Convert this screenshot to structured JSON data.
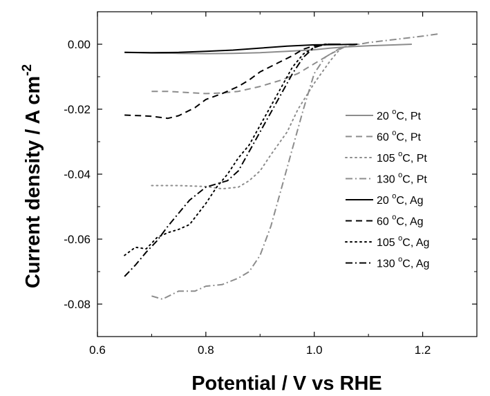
{
  "chart_data": {
    "type": "line",
    "xlabel": "Potential / V vs RHE",
    "ylabel_main": "Current density / A cm",
    "ylabel_superscript": "-2",
    "xlim": [
      0.6,
      1.3
    ],
    "ylim": [
      -0.09,
      0.01
    ],
    "x_ticks": [
      "0.6",
      "0.8",
      "1.0",
      "1.2"
    ],
    "y_ticks": [
      "0.00",
      "-0.02",
      "-0.04",
      "-0.06",
      "-0.08"
    ],
    "legend_position": "right",
    "series": [
      {
        "name": "20 °C, Pt",
        "name_value": "20",
        "name_unit": "o",
        "name_rest": "C, Pt",
        "color": "#8c8c8c",
        "dash": "solid",
        "x": [
          0.65,
          0.7,
          0.75,
          0.8,
          0.85,
          0.9,
          0.95,
          1.0,
          1.03,
          1.06,
          1.1,
          1.15,
          1.18
        ],
        "y": [
          -0.0025,
          -0.0027,
          -0.0028,
          -0.0029,
          -0.0028,
          -0.0026,
          -0.0022,
          -0.0017,
          -0.0012,
          -0.0008,
          -0.0005,
          -0.0002,
          0.0
        ]
      },
      {
        "name": "60 °C, Pt",
        "name_value": "60",
        "name_unit": "o",
        "name_rest": "C, Pt",
        "color": "#8c8c8c",
        "dash": "dash",
        "x": [
          0.7,
          0.73,
          0.76,
          0.8,
          0.83,
          0.86,
          0.9,
          0.94,
          0.97,
          1.0,
          1.03,
          1.06
        ],
        "y": [
          -0.0145,
          -0.0145,
          -0.0148,
          -0.0152,
          -0.015,
          -0.0145,
          -0.013,
          -0.011,
          -0.009,
          -0.006,
          -0.003,
          -0.0005
        ]
      },
      {
        "name": "105 °C, Pt",
        "name_value": "105",
        "name_unit": "o",
        "name_rest": "C, Pt",
        "color": "#8c8c8c",
        "dash": "dot",
        "x": [
          0.7,
          0.75,
          0.8,
          0.83,
          0.86,
          0.88,
          0.9,
          0.92,
          0.95,
          0.97,
          1.0,
          1.03,
          1.05,
          1.08
        ],
        "y": [
          -0.0435,
          -0.0435,
          -0.0438,
          -0.0445,
          -0.044,
          -0.042,
          -0.039,
          -0.034,
          -0.027,
          -0.02,
          -0.012,
          -0.005,
          -0.001,
          0.0
        ]
      },
      {
        "name": "130 °C, Pt",
        "name_value": "130",
        "name_unit": "o",
        "name_rest": "C, Pt",
        "color": "#8c8c8c",
        "dash": "dashdot",
        "x": [
          0.7,
          0.72,
          0.75,
          0.78,
          0.8,
          0.83,
          0.86,
          0.88,
          0.9,
          0.92,
          0.94,
          0.96,
          0.98,
          1.0,
          1.02,
          1.05,
          1.1,
          1.15,
          1.2,
          1.23
        ],
        "y": [
          -0.0775,
          -0.0785,
          -0.076,
          -0.076,
          -0.0745,
          -0.074,
          -0.072,
          -0.07,
          -0.065,
          -0.056,
          -0.044,
          -0.032,
          -0.02,
          -0.009,
          -0.004,
          -0.001,
          0.0005,
          0.0015,
          0.0025,
          0.0032
        ]
      },
      {
        "name": "20 °C, Ag",
        "name_value": "20",
        "name_unit": "o",
        "name_rest": "C, Ag",
        "color": "#000000",
        "dash": "solid",
        "x": [
          0.65,
          0.7,
          0.75,
          0.8,
          0.85,
          0.9,
          0.95,
          1.0,
          1.05,
          1.08
        ],
        "y": [
          -0.0025,
          -0.0026,
          -0.0025,
          -0.0022,
          -0.0018,
          -0.0012,
          -0.0006,
          -0.0002,
          -0.0001,
          0.0
        ]
      },
      {
        "name": "60 °C, Ag",
        "name_value": "60",
        "name_unit": "o",
        "name_rest": "C, Ag",
        "color": "#000000",
        "dash": "dash",
        "x": [
          0.65,
          0.68,
          0.7,
          0.73,
          0.75,
          0.78,
          0.8,
          0.83,
          0.86,
          0.88,
          0.9,
          0.93,
          0.96,
          0.98,
          1.0,
          1.03,
          1.05
        ],
        "y": [
          -0.0218,
          -0.022,
          -0.0222,
          -0.0228,
          -0.022,
          -0.0195,
          -0.017,
          -0.0152,
          -0.013,
          -0.011,
          -0.0085,
          -0.006,
          -0.0035,
          -0.0015,
          -0.0005,
          0.0,
          0.0
        ]
      },
      {
        "name": "105 °C, Ag",
        "name_value": "105",
        "name_unit": "o",
        "name_rest": "C, Ag",
        "color": "#000000",
        "dash": "dot",
        "x": [
          0.65,
          0.67,
          0.69,
          0.71,
          0.73,
          0.75,
          0.77,
          0.8,
          0.82,
          0.84,
          0.86,
          0.88,
          0.9,
          0.92,
          0.94,
          0.96,
          0.98,
          1.0,
          1.02,
          1.04
        ],
        "y": [
          -0.065,
          -0.0625,
          -0.063,
          -0.0595,
          -0.058,
          -0.057,
          -0.0555,
          -0.049,
          -0.044,
          -0.04,
          -0.035,
          -0.031,
          -0.025,
          -0.019,
          -0.013,
          -0.007,
          -0.003,
          -0.001,
          0.0,
          0.0
        ]
      },
      {
        "name": "130 °C, Ag",
        "name_value": "130",
        "name_unit": "o",
        "name_rest": "C, Ag",
        "color": "#000000",
        "dash": "dashdot",
        "x": [
          0.65,
          0.67,
          0.69,
          0.71,
          0.73,
          0.75,
          0.77,
          0.8,
          0.82,
          0.84,
          0.86,
          0.88,
          0.9,
          0.92,
          0.94,
          0.96,
          0.98,
          1.0,
          1.02,
          1.04
        ],
        "y": [
          -0.0715,
          -0.068,
          -0.064,
          -0.0605,
          -0.056,
          -0.052,
          -0.048,
          -0.044,
          -0.043,
          -0.042,
          -0.039,
          -0.033,
          -0.027,
          -0.021,
          -0.015,
          -0.009,
          -0.004,
          -0.001,
          0.0,
          0.0
        ]
      }
    ]
  }
}
